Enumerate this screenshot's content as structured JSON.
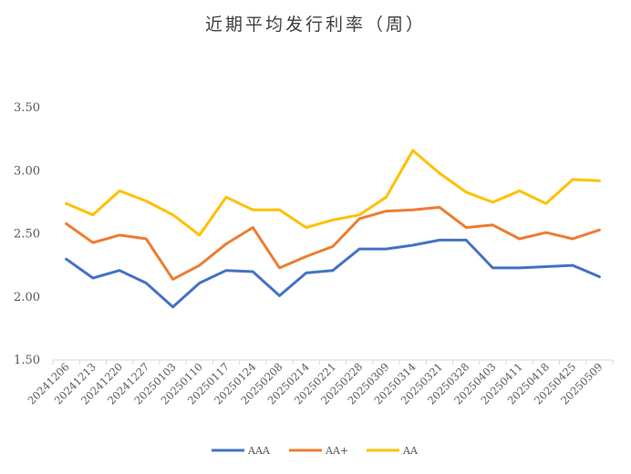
{
  "chart_data": {
    "type": "line",
    "title": "近期平均发行利率（周）",
    "xlabel": "",
    "ylabel": "",
    "ylim": [
      1.5,
      3.5
    ],
    "yticks": [
      "1.50",
      "2.00",
      "2.50",
      "3.00",
      "3.50"
    ],
    "grid": false,
    "legend_position": "bottom",
    "categories": [
      "20241206",
      "20241213",
      "20241220",
      "20241227",
      "20250103",
      "20250110",
      "20250117",
      "20250124",
      "20250208",
      "20250214",
      "20250221",
      "20250228",
      "20250309",
      "20250314",
      "20250321",
      "20250328",
      "20250403",
      "20250411",
      "20250418",
      "20250425",
      "20250509"
    ],
    "series": [
      {
        "name": "AAA",
        "color": "#4472C4",
        "values": [
          2.3,
          2.15,
          2.21,
          2.11,
          1.92,
          2.11,
          2.21,
          2.2,
          2.01,
          2.19,
          2.21,
          2.38,
          2.38,
          2.41,
          2.45,
          2.45,
          2.23,
          2.23,
          2.24,
          2.25,
          2.16
        ]
      },
      {
        "name": "AA+",
        "color": "#ED7D31",
        "values": [
          2.58,
          2.43,
          2.49,
          2.46,
          2.14,
          2.25,
          2.42,
          2.55,
          2.23,
          2.32,
          2.4,
          2.62,
          2.68,
          2.69,
          2.71,
          2.55,
          2.57,
          2.46,
          2.51,
          2.46,
          2.53
        ]
      },
      {
        "name": "AA",
        "color": "#FFC000",
        "values": [
          2.74,
          2.65,
          2.84,
          2.76,
          2.65,
          2.49,
          2.79,
          2.69,
          2.69,
          2.55,
          2.61,
          2.65,
          2.79,
          3.16,
          2.98,
          2.83,
          2.75,
          2.84,
          2.74,
          2.93,
          2.92
        ]
      }
    ]
  }
}
